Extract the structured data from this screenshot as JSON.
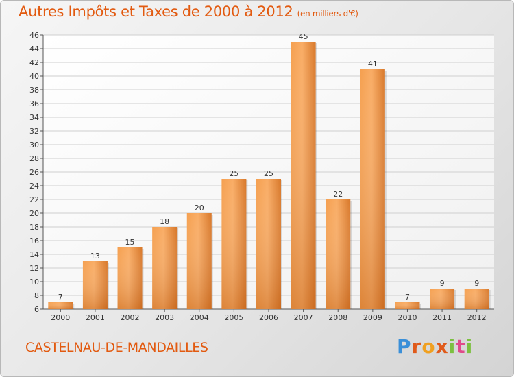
{
  "header": {
    "title": "Autres Impôts et Taxes de 2000 à 2012",
    "unit": "(en milliers d'€)"
  },
  "footer": {
    "commune": "CASTELNAU-DE-MANDAILLES",
    "logo": [
      "P",
      "r",
      "o",
      "x",
      "i",
      "t",
      "i"
    ]
  },
  "colors": {
    "title": "#e25a10",
    "bar_light": "#f9a55a",
    "bar_dark": "#d2721e",
    "grid": "#cfcfcf"
  },
  "chart_data": {
    "type": "bar",
    "title": "Autres Impôts et Taxes de 2000 à 2012",
    "subtitle": "(en milliers d'€)",
    "categories": [
      "2000",
      "2001",
      "2002",
      "2003",
      "2004",
      "2005",
      "2006",
      "2007",
      "2008",
      "2009",
      "2010",
      "2011",
      "2012"
    ],
    "values": [
      7,
      13,
      15,
      18,
      20,
      25,
      25,
      45,
      22,
      41,
      7,
      9,
      9
    ],
    "data_labels": [
      "7",
      "13",
      "15",
      "18",
      "20",
      "25",
      "25",
      "45",
      "22",
      "41",
      "7",
      "9",
      "9"
    ],
    "ylim": [
      6,
      46
    ],
    "yticks": [
      6,
      8,
      10,
      12,
      14,
      16,
      18,
      20,
      22,
      24,
      26,
      28,
      30,
      32,
      34,
      36,
      38,
      40,
      42,
      44,
      46
    ],
    "grid": true,
    "legend": "none"
  }
}
